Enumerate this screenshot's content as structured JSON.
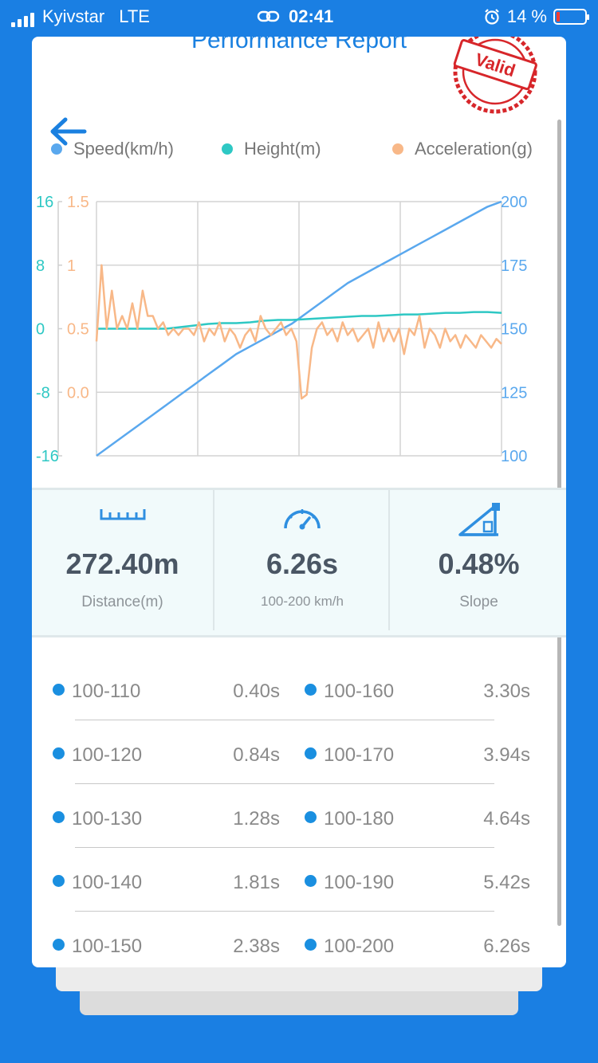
{
  "status_bar": {
    "carrier": "Kyivstar",
    "network": "LTE",
    "time": "02:41",
    "battery": "14 %"
  },
  "header": {
    "title": "Performance Report",
    "stamp_text": "Valid"
  },
  "legend": [
    {
      "label": "Speed(km/h)",
      "color": "#5aa8ee"
    },
    {
      "label": "Height(m)",
      "color": "#2ec8c4"
    },
    {
      "label": "Acceleration(g)",
      "color": "#f8b888"
    }
  ],
  "chart_data": {
    "type": "line",
    "grid": true,
    "x_ticks": 4,
    "y_axes": {
      "height": {
        "ticks": [
          "16",
          "8",
          "0",
          "-8",
          "-16"
        ],
        "range": [
          -16,
          16
        ],
        "color": "#2ec8c4"
      },
      "acceleration": {
        "ticks": [
          "1.5",
          "1",
          "0.5",
          "0.0"
        ],
        "range": [
          -0.5,
          1.5
        ],
        "color": "#f8b888"
      },
      "speed": {
        "ticks": [
          "200",
          "175",
          "150",
          "125",
          "100"
        ],
        "range": [
          100,
          200
        ],
        "color": "#5aa8ee"
      }
    },
    "series": [
      {
        "name": "Speed(km/h)",
        "axis": "speed",
        "color": "#5aa8ee",
        "values": [
          100,
          104,
          108,
          112,
          116,
          120,
          124,
          128,
          132,
          136,
          140,
          143,
          146,
          149,
          152,
          156,
          160,
          164,
          168,
          171,
          174,
          177,
          180,
          183,
          186,
          189,
          192,
          195,
          198,
          200
        ]
      },
      {
        "name": "Height(m)",
        "axis": "height",
        "color": "#2ec8c4",
        "values": [
          0,
          0,
          0,
          0,
          0,
          0,
          0.2,
          0.4,
          0.6,
          0.7,
          0.7,
          0.8,
          1.0,
          1.1,
          1.1,
          1.2,
          1.3,
          1.4,
          1.5,
          1.6,
          1.6,
          1.7,
          1.8,
          1.8,
          1.9,
          2.0,
          2.0,
          2.1,
          2.1,
          2.0
        ]
      },
      {
        "name": "Acceleration(g)",
        "axis": "acceleration",
        "color": "#f8b888",
        "values": [
          0.4,
          1.0,
          0.5,
          0.8,
          0.5,
          0.6,
          0.5,
          0.7,
          0.5,
          0.8,
          0.6,
          0.6,
          0.5,
          0.55,
          0.45,
          0.5,
          0.45,
          0.5,
          0.5,
          0.45,
          0.55,
          0.4,
          0.5,
          0.45,
          0.55,
          0.4,
          0.5,
          0.45,
          0.35,
          0.45,
          0.5,
          0.4,
          0.6,
          0.5,
          0.45,
          0.5,
          0.55,
          0.45,
          0.5,
          0.4,
          -0.05,
          -0.02,
          0.35,
          0.5,
          0.55,
          0.45,
          0.5,
          0.4,
          0.55,
          0.45,
          0.5,
          0.4,
          0.45,
          0.5,
          0.35,
          0.55,
          0.4,
          0.5,
          0.4,
          0.5,
          0.3,
          0.5,
          0.45,
          0.6,
          0.35,
          0.5,
          0.45,
          0.35,
          0.5,
          0.4,
          0.45,
          0.35,
          0.45,
          0.4,
          0.35,
          0.45,
          0.4,
          0.35,
          0.42,
          0.38
        ]
      }
    ]
  },
  "stats": {
    "distance": {
      "value": "272.40m",
      "label": "Distance(m)",
      "icon": "ruler-icon"
    },
    "time": {
      "value": "6.26s",
      "label": "100-200 km/h",
      "icon": "speedometer-icon"
    },
    "slope": {
      "value": "0.48%",
      "label": "Slope",
      "icon": "slope-icon"
    }
  },
  "splits": {
    "left": [
      {
        "range": "100-110",
        "time": "0.40s"
      },
      {
        "range": "100-120",
        "time": "0.84s"
      },
      {
        "range": "100-130",
        "time": "1.28s"
      },
      {
        "range": "100-140",
        "time": "1.81s"
      },
      {
        "range": "100-150",
        "time": "2.38s"
      }
    ],
    "right": [
      {
        "range": "100-160",
        "time": "3.30s"
      },
      {
        "range": "100-170",
        "time": "3.94s"
      },
      {
        "range": "100-180",
        "time": "4.64s"
      },
      {
        "range": "100-190",
        "time": "5.42s"
      },
      {
        "range": "100-200",
        "time": "6.26s"
      }
    ]
  },
  "colors": {
    "background": "#1a7fe3",
    "accent": "#1a80e0",
    "stamp": "#d7262a",
    "bullet": "#1a8fe0"
  }
}
